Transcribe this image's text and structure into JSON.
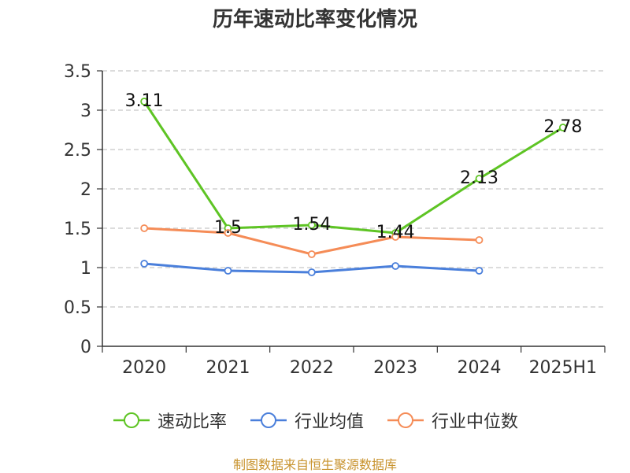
{
  "chart_data": {
    "type": "line",
    "title": "历年速动比率变化情况",
    "categories": [
      "2020",
      "2021",
      "2022",
      "2023",
      "2024",
      "2025H1"
    ],
    "ylim": [
      0,
      3.5
    ],
    "yticks": [
      "0",
      "0.5",
      "1",
      "1.5",
      "2",
      "2.5",
      "3",
      "3.5"
    ],
    "grid": true,
    "legend_position": "bottom",
    "series": [
      {
        "name": "速动比率",
        "color": "#5ec424",
        "values": [
          3.11,
          1.5,
          1.54,
          1.44,
          2.13,
          2.78
        ],
        "data_labels": [
          "3.11",
          "1.5",
          "1.54",
          "1.44",
          "2.13",
          "2.78"
        ]
      },
      {
        "name": "行业均值",
        "color": "#4a7fdb",
        "values": [
          1.05,
          0.96,
          0.94,
          1.02,
          0.96,
          null
        ]
      },
      {
        "name": "行业中位数",
        "color": "#f58c57",
        "values": [
          1.5,
          1.44,
          1.17,
          1.39,
          1.35,
          null
        ]
      }
    ]
  },
  "source_note": "制图数据来自恒生聚源数据库"
}
